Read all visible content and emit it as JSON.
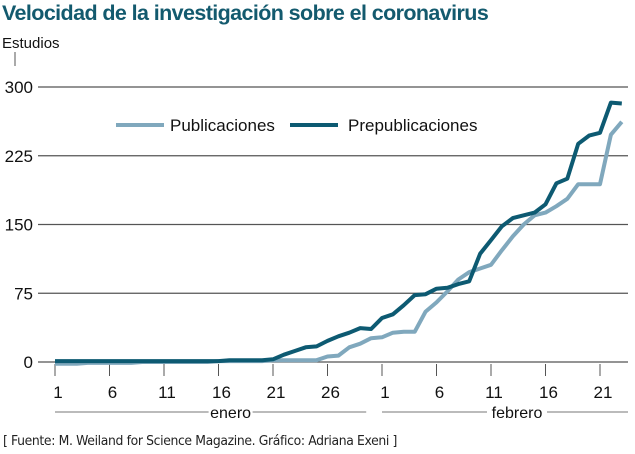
{
  "title": "Velocidad de la investigación sobre el coronavirus",
  "source": "[ Fuente: M. Weiland for Science Magazine. Gráfico: Adriana Exeni ]",
  "colors": {
    "title": "#135a6e",
    "publicaciones": "#80a8bd",
    "prepublicaciones": "#0d5a72",
    "grid": "#555555",
    "axis": "#555555"
  },
  "chart_data": {
    "type": "line",
    "title": "Velocidad de la investigación sobre el coronavirus",
    "ylabel": "Estudios",
    "xlabel": "",
    "ylim": [
      0,
      300
    ],
    "yticks": [
      0,
      75,
      150,
      225,
      300
    ],
    "ytick_labels": [
      "0",
      "75",
      "150",
      "225",
      "300"
    ],
    "grid": true,
    "x_index_range": [
      0,
      52
    ],
    "xticks": [
      {
        "index": 0,
        "label": "1"
      },
      {
        "index": 5,
        "label": "6"
      },
      {
        "index": 10,
        "label": "11"
      },
      {
        "index": 15,
        "label": "16"
      },
      {
        "index": 20,
        "label": "21"
      },
      {
        "index": 25,
        "label": "26"
      },
      {
        "index": 30,
        "label": "1"
      },
      {
        "index": 35,
        "label": "6"
      },
      {
        "index": 40,
        "label": "11"
      },
      {
        "index": 45,
        "label": "16"
      },
      {
        "index": 50,
        "label": "21"
      }
    ],
    "months": [
      {
        "label": "enero",
        "start": 0,
        "end": 28
      },
      {
        "label": "febrero",
        "start": 30,
        "end": 52
      }
    ],
    "legend": {
      "placement": "top-left",
      "entries": [
        "Publicaciones",
        "Prepublicaciones"
      ]
    },
    "x": [
      0,
      1,
      2,
      3,
      4,
      5,
      6,
      7,
      8,
      9,
      10,
      11,
      12,
      13,
      14,
      15,
      16,
      17,
      18,
      19,
      20,
      21,
      22,
      23,
      24,
      25,
      26,
      27,
      28,
      29,
      30,
      31,
      32,
      33,
      34,
      35,
      36,
      37,
      38,
      39,
      40,
      41,
      42,
      43,
      44,
      45,
      46,
      47,
      48,
      49,
      50,
      51,
      52
    ],
    "series": [
      {
        "name": "Publicaciones",
        "color": "#80a8bd",
        "values": [
          -2,
          -2,
          -2,
          -1,
          -1,
          -1,
          -1,
          -1,
          0,
          0,
          0,
          0,
          0,
          0,
          0,
          1,
          1,
          1,
          1,
          1,
          2,
          2,
          2,
          2,
          2,
          6,
          7,
          16,
          20,
          26,
          27,
          32,
          33,
          33,
          55,
          65,
          77,
          90,
          98,
          102,
          106,
          122,
          137,
          150,
          160,
          163,
          170,
          178,
          194,
          194,
          194,
          248,
          262
        ]
      },
      {
        "name": "Prepublicaciones",
        "color": "#0d5a72",
        "values": [
          1,
          1,
          1,
          1,
          1,
          1,
          1,
          1,
          1,
          1,
          1,
          1,
          1,
          1,
          1,
          1,
          2,
          2,
          2,
          2,
          3,
          8,
          12,
          16,
          17,
          23,
          28,
          32,
          37,
          36,
          48,
          52,
          62,
          73,
          74,
          80,
          81,
          85,
          88,
          118,
          133,
          148,
          157,
          160,
          163,
          172,
          195,
          200,
          238,
          247,
          250,
          283,
          282
        ]
      }
    ]
  }
}
